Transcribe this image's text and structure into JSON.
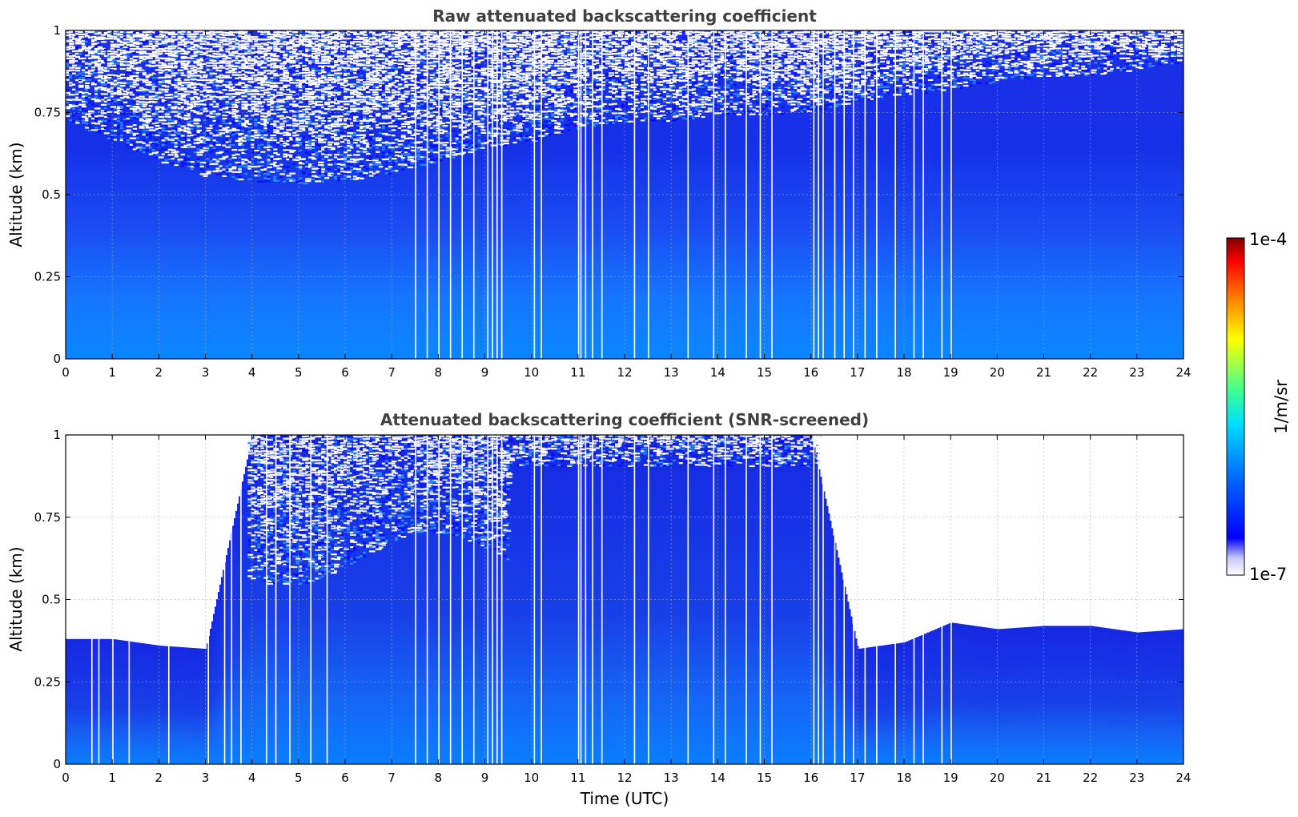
{
  "chart_data": [
    {
      "type": "heatmap",
      "title": "Raw attenuated backscattering coefficient",
      "ylabel": "Altitude (km)",
      "xlabel": "",
      "xlim": [
        0,
        24
      ],
      "ylim": [
        0,
        1
      ],
      "x_ticks": [
        "0",
        "1",
        "2",
        "3",
        "4",
        "5",
        "6",
        "7",
        "8",
        "9",
        "10",
        "11",
        "12",
        "13",
        "14",
        "15",
        "16",
        "17",
        "18",
        "19",
        "20",
        "21",
        "22",
        "23",
        "24"
      ],
      "y_ticks": [
        "0",
        "0.25",
        "0.5",
        "0.75",
        "1"
      ],
      "grid": true,
      "noise_top_altitude_by_hour": [
        0.72,
        0.66,
        0.6,
        0.55,
        0.54,
        0.53,
        0.54,
        0.56,
        0.6,
        0.64,
        0.66,
        0.7,
        0.72,
        0.72,
        0.74,
        0.74,
        0.75,
        0.78,
        0.8,
        0.82,
        0.84,
        0.86,
        0.86,
        0.88,
        0.9
      ],
      "dropout_times_utc": [
        7.5,
        7.75,
        8.0,
        8.25,
        8.5,
        8.75,
        9.05,
        9.15,
        9.25,
        9.35,
        10.05,
        10.2,
        11.0,
        11.05,
        11.15,
        11.3,
        11.5,
        12.2,
        12.5,
        13.35,
        13.9,
        14.15,
        14.6,
        14.9,
        15.15,
        16.05,
        16.15,
        16.25,
        16.5,
        16.7,
        16.9,
        17.15,
        17.4,
        17.8,
        18.2,
        18.4,
        18.8,
        19.0
      ]
    },
    {
      "type": "heatmap",
      "title": "Attenuated backscattering coefficient (SNR-screened)",
      "ylabel": "Altitude (km)",
      "xlabel": "Time (UTC)",
      "xlim": [
        0,
        24
      ],
      "ylim": [
        0,
        1
      ],
      "x_ticks": [
        "0",
        "1",
        "2",
        "3",
        "4",
        "5",
        "6",
        "7",
        "8",
        "9",
        "10",
        "11",
        "12",
        "13",
        "14",
        "15",
        "16",
        "17",
        "18",
        "19",
        "20",
        "21",
        "22",
        "23",
        "24"
      ],
      "y_ticks": [
        "0",
        "0.25",
        "0.5",
        "0.75",
        "1"
      ],
      "grid": true,
      "valid_top_altitude_by_hour": [
        0.38,
        0.38,
        0.36,
        0.35,
        1.0,
        1.0,
        1.0,
        1.0,
        1.0,
        1.0,
        1.0,
        1.0,
        1.0,
        1.0,
        1.0,
        1.0,
        1.0,
        0.35,
        0.37,
        0.43,
        0.41,
        0.42,
        0.42,
        0.4,
        0.41
      ],
      "dropout_times_utc": [
        0.55,
        0.7,
        1.0,
        1.35,
        2.2,
        3.05,
        3.4,
        3.55,
        3.75,
        4.3,
        4.5,
        4.8,
        5.25,
        5.6,
        7.5,
        7.75,
        8.0,
        8.25,
        8.5,
        8.75,
        9.05,
        9.15,
        9.25,
        9.35,
        10.05,
        10.2,
        11.0,
        11.05,
        11.15,
        11.3,
        11.5,
        12.2,
        12.5,
        13.35,
        13.9,
        14.15,
        14.6,
        14.9,
        15.15,
        16.05,
        16.15,
        16.25,
        16.5,
        16.7,
        16.9,
        17.15,
        17.4,
        17.8,
        18.2,
        18.4,
        18.8,
        19.0
      ]
    }
  ],
  "colorbar": {
    "max_label": "1e-4",
    "min_label": "1e-7",
    "unit_label": "1/m/sr",
    "colors": [
      "#ffffff",
      "#d8d8f8",
      "#0000ff",
      "#0080ff",
      "#00e0ff",
      "#40ff80",
      "#ffff00",
      "#ff8000",
      "#ff0000",
      "#800000"
    ]
  }
}
